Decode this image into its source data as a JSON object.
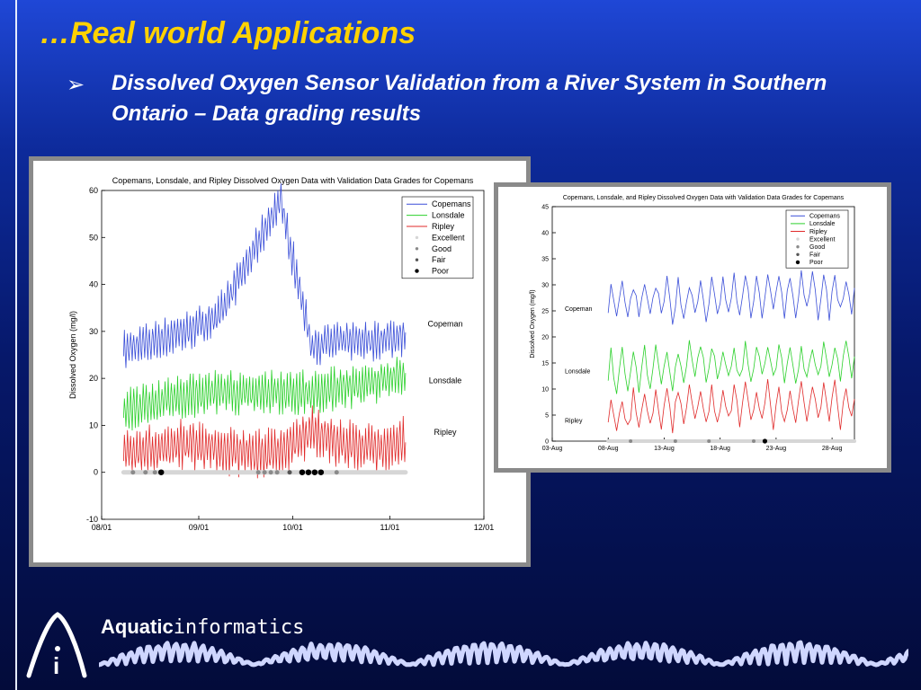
{
  "slide": {
    "title": "…Real world Applications",
    "bullet_symbol": "➢",
    "bullet": "Dissolved Oxygen Sensor Validation from a River System in Southern Ontario – Data grading results"
  },
  "brand": {
    "part1": "Aquatic",
    "part2": "informatics",
    "logo_letter": "i"
  },
  "colors": {
    "title": "#ffd200",
    "copemans": "#3b4fd8",
    "lonsdale": "#2bd02b",
    "ripley": "#e02a2a",
    "excellent": "#d6d6d6",
    "good": "#8a8a8a",
    "fair": "#555555",
    "poor": "#000000"
  },
  "chart_data": [
    {
      "type": "line",
      "title": "Copemans, Lonsdale, and Ripley Dissolved Oxygen Data with Validation Data Grades for Copemans",
      "ylabel": "Dissolved Oxygen (mg/l)",
      "xlabel": "",
      "ylim": [
        -10,
        60
      ],
      "yticks": [
        -10,
        0,
        10,
        20,
        30,
        40,
        50,
        60
      ],
      "x_ticks": [
        "08/01",
        "09/01",
        "10/01",
        "11/01",
        "12/01"
      ],
      "xlim": [
        "08/01",
        "12/01"
      ],
      "legend_position": "top-right",
      "legend": [
        "Copemans",
        "Lonsdale",
        "Ripley",
        "Excellent",
        "Good",
        "Fair",
        "Poor"
      ],
      "series_labels": [
        "Copeman",
        "Lonsdale",
        "Ripley"
      ],
      "series": [
        {
          "name": "Copemans",
          "x_start": "08/08",
          "x_end": "11/06",
          "baseline": [
            26,
            28,
            30,
            33,
            45,
            58,
            27,
            28,
            28,
            29
          ],
          "amplitude": 3.2
        },
        {
          "name": "Lonsdale",
          "x_start": "08/08",
          "x_end": "11/06",
          "baseline": [
            13,
            15,
            16,
            17,
            17,
            17,
            17,
            18,
            19,
            21
          ],
          "amplitude": 3.5
        },
        {
          "name": "Ripley",
          "x_start": "08/08",
          "x_end": "11/06",
          "baseline": [
            4,
            5,
            6,
            5,
            4,
            4,
            9,
            6,
            5,
            7
          ],
          "amplitude": 4
        }
      ],
      "grades": {
        "excellent_range": [
          "08/08",
          "11/06"
        ],
        "good": [
          "08/11",
          "08/15",
          "08/18",
          "09/20",
          "09/22",
          "09/24",
          "09/26",
          "10/15"
        ],
        "fair": [
          "09/30"
        ],
        "poor": [
          "08/20",
          "10/04",
          "10/06",
          "10/08",
          "10/10"
        ]
      }
    },
    {
      "type": "line",
      "title": "Copemans, Lonsdale, and Ripley Dissolved Oxygen Data with Validation Data Grades for Copemans",
      "ylabel": "Dissolved Oxygen (mg/l)",
      "xlabel": "",
      "ylim": [
        0,
        45
      ],
      "yticks": [
        0,
        5,
        10,
        15,
        20,
        25,
        30,
        35,
        40,
        45
      ],
      "x_ticks": [
        "03-Aug",
        "08-Aug",
        "13-Aug",
        "18-Aug",
        "23-Aug",
        "28-Aug"
      ],
      "xlim": [
        "03-Aug",
        "30-Aug"
      ],
      "legend_position": "top-right",
      "legend": [
        "Copemans",
        "Lonsdale",
        "Ripley",
        "Excellent",
        "Good",
        "Fair",
        "Poor"
      ],
      "series_labels": [
        "Copeman",
        "Lonsdale",
        "Ripley"
      ],
      "series": [
        {
          "name": "Copemans",
          "x_start": "08-Aug",
          "x_end": "30-Aug",
          "baseline": [
            26,
            27,
            27,
            28,
            28,
            28
          ],
          "amplitude": 3.5
        },
        {
          "name": "Lonsdale",
          "x_start": "08-Aug",
          "x_end": "30-Aug",
          "baseline": [
            13,
            14,
            15,
            15,
            15,
            15
          ],
          "amplitude": 3.5
        },
        {
          "name": "Ripley",
          "x_start": "08-Aug",
          "x_end": "30-Aug",
          "baseline": [
            5,
            6,
            7,
            7,
            7,
            7
          ],
          "amplitude": 3.5
        }
      ],
      "grades": {
        "excellent_range": [
          "08-Aug",
          "30-Aug"
        ],
        "good": [
          "10-Aug",
          "14-Aug",
          "17-Aug",
          "21-Aug"
        ],
        "fair": [],
        "poor": [
          "22-Aug"
        ]
      }
    }
  ]
}
